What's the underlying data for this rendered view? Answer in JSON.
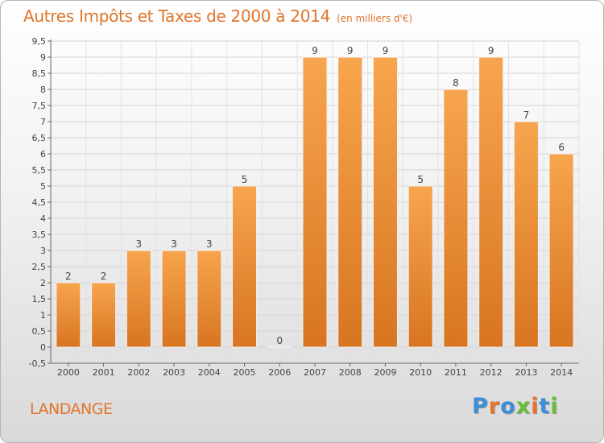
{
  "header": {
    "title": "Autres Impôts et Taxes de 2000 à 2014",
    "subtitle": "(en milliers d'€)"
  },
  "footer": {
    "place": "LANDANGE",
    "logo": [
      "P",
      "r",
      "o",
      "x",
      "i",
      "t",
      "i"
    ]
  },
  "colors": {
    "bar_light": "#f7a54e",
    "bar_dark": "#d87520",
    "title": "#e0742a",
    "logo": [
      "#3a8fd6",
      "#e8732a",
      "#3a8fd6",
      "#6abf3a",
      "#e8732a",
      "#3a8fd6",
      "#6abf3a"
    ]
  },
  "chart_data": {
    "type": "bar",
    "categories": [
      "2000",
      "2001",
      "2002",
      "2003",
      "2004",
      "2005",
      "2006",
      "2007",
      "2008",
      "2009",
      "2010",
      "2011",
      "2012",
      "2013",
      "2014"
    ],
    "values": [
      2,
      2,
      3,
      3,
      3,
      5,
      0,
      9,
      9,
      9,
      5,
      8,
      9,
      7,
      6
    ],
    "ylim": [
      -0.5,
      9.5
    ],
    "yticks": [
      "-0,5",
      "0",
      "0,5",
      "1",
      "1,5",
      "2",
      "2,5",
      "3",
      "3,5",
      "4",
      "4,5",
      "5",
      "5,5",
      "6",
      "6,5",
      "7",
      "7,5",
      "8",
      "8,5",
      "9",
      "9,5"
    ],
    "ytick_values": [
      -0.5,
      0,
      0.5,
      1,
      1.5,
      2,
      2.5,
      3,
      3.5,
      4,
      4.5,
      5,
      5.5,
      6,
      6.5,
      7,
      7.5,
      8,
      8.5,
      9,
      9.5
    ],
    "grid": true,
    "xlabel": "",
    "ylabel": ""
  }
}
